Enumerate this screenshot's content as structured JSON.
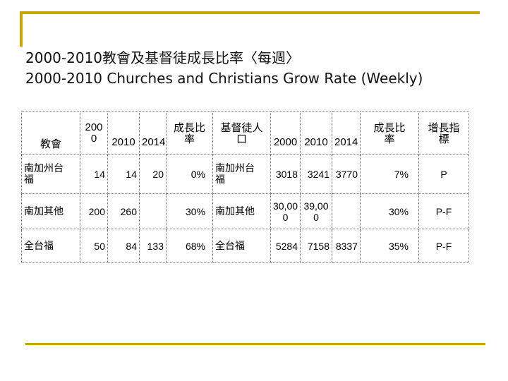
{
  "title": {
    "line1": "2000-2010教會及基督徒成長比率〈每週〉",
    "line2": "2000-2010 Churches and Christians Grow Rate (Weekly)"
  },
  "table": {
    "header": {
      "church": "教會",
      "year2000": "200\n0",
      "year2010": "2010",
      "year2014": "2014",
      "church_growth": "成長比\n率",
      "christians": "基督徒人\n口",
      "c_year2000": "2000",
      "c_year2010": "2010",
      "c_year2014": "2014",
      "christian_growth": "成長比\n率",
      "index": "增長指\n標"
    },
    "rows": [
      {
        "church": "南加州台\n福",
        "y2000": "14",
        "y2010": "14",
        "y2014": "20",
        "growth": "0%",
        "group": "南加州台\n福",
        "c2000": "3018",
        "c2010": "3241",
        "c2014": "3770",
        "c_growth": "7%",
        "index": "P"
      },
      {
        "church": "南加其他",
        "y2000": "200",
        "y2010": "260",
        "y2014": "",
        "growth": "30%",
        "group": "南加其他",
        "c2000": "30,00\n0",
        "c2010": "39,00\n0",
        "c2014": "",
        "c_growth": "30%",
        "index": "P-F"
      },
      {
        "church": "全台福",
        "y2000": "50",
        "y2010": "84",
        "y2014": "133",
        "growth": "68%",
        "group": "全台福",
        "c2000": "5284",
        "c2010": "7158",
        "c2014": "8337",
        "c_growth": "35%",
        "index": "P-F"
      }
    ]
  },
  "colors": {
    "accent_bar": "#c8a500",
    "grid": "#777777"
  }
}
